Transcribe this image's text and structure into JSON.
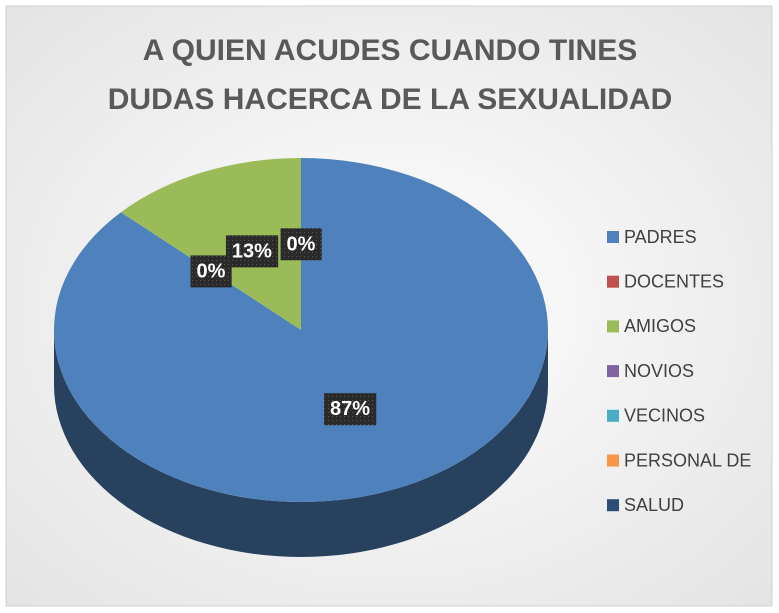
{
  "chart_data": {
    "type": "pie",
    "title": [
      "A QUIEN ACUDES CUANDO TINES",
      "DUDAS HACERCA DE LA SEXUALIDAD"
    ],
    "categories": [
      "PADRES",
      "DOCENTES",
      "AMIGOS",
      "NOVIOS",
      "VECINOS",
      "PERSONAL DE",
      "SALUD"
    ],
    "values": [
      87,
      0,
      13,
      0,
      0,
      0,
      0
    ],
    "value_labels": [
      "87%",
      "0%",
      "13%",
      "0%",
      null,
      null,
      null
    ],
    "colors": [
      "#4f81bd",
      "#c0504d",
      "#9bbb59",
      "#8064a2",
      "#4bacc6",
      "#f79646",
      "#2c4d75"
    ],
    "legend": "right"
  }
}
